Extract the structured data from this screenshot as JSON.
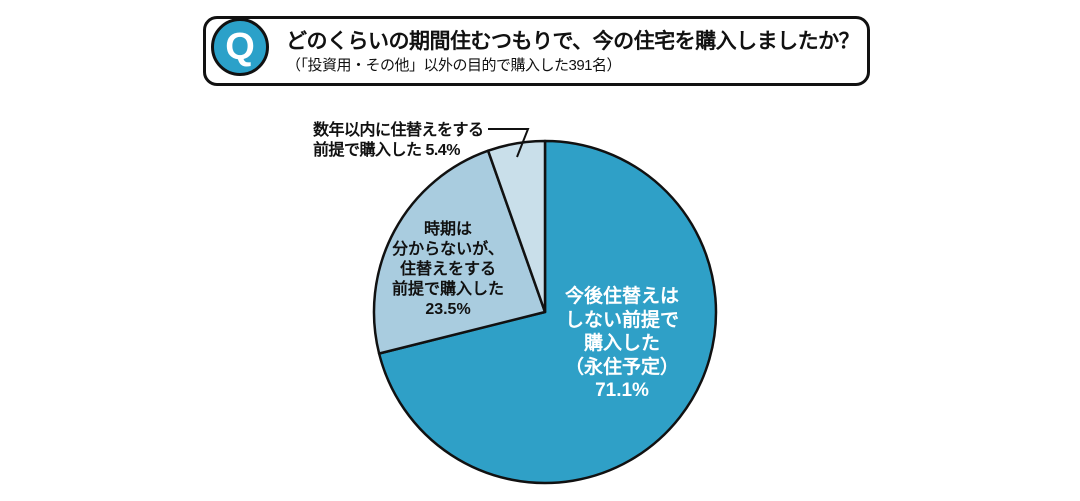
{
  "accent_color": "#2BA1C9",
  "question_box": {
    "q_mark": "Q",
    "title": "どのくらいの期間住むつもりで、今の住宅を購入しましたか？",
    "subtitle": "（「投資用・その他」以外の目的で購入した391名）"
  },
  "chart_data": {
    "type": "pie",
    "title": "どのくらいの期間住むつもりで、今の住宅を購入しましたか？",
    "subtitle_note": "「投資用・その他」以外の目的で購入した391名",
    "respondents": 391,
    "unit": "%",
    "start_angle": "12-oclock",
    "direction": "clockwise",
    "outline_color": "#111111",
    "slices": [
      {
        "label": "今後住替えはしない前提で購入した（永住予定）",
        "label_display": "今後住替えは\nしない前提で\n購入した\n（永住予定）\n71.1%",
        "value": 71.1,
        "color": "#2FA0C7",
        "label_color": "#FFFFFF",
        "label_placement": "inside"
      },
      {
        "label": "時期は分からないが、住替えをする前提で購入した",
        "label_display": "時期は\n分からないが、\n住替えをする\n前提で購入した\n23.5%",
        "value": 23.5,
        "color": "#A9CCDF",
        "label_color": "#111111",
        "label_placement": "inside"
      },
      {
        "label": "数年以内に住替えをする前提で購入した",
        "label_display": "数年以内に住替えをする\n前提で購入した 5.4%",
        "value": 5.4,
        "color": "#C9DFEA",
        "label_color": "#111111",
        "label_placement": "callout"
      }
    ]
  }
}
